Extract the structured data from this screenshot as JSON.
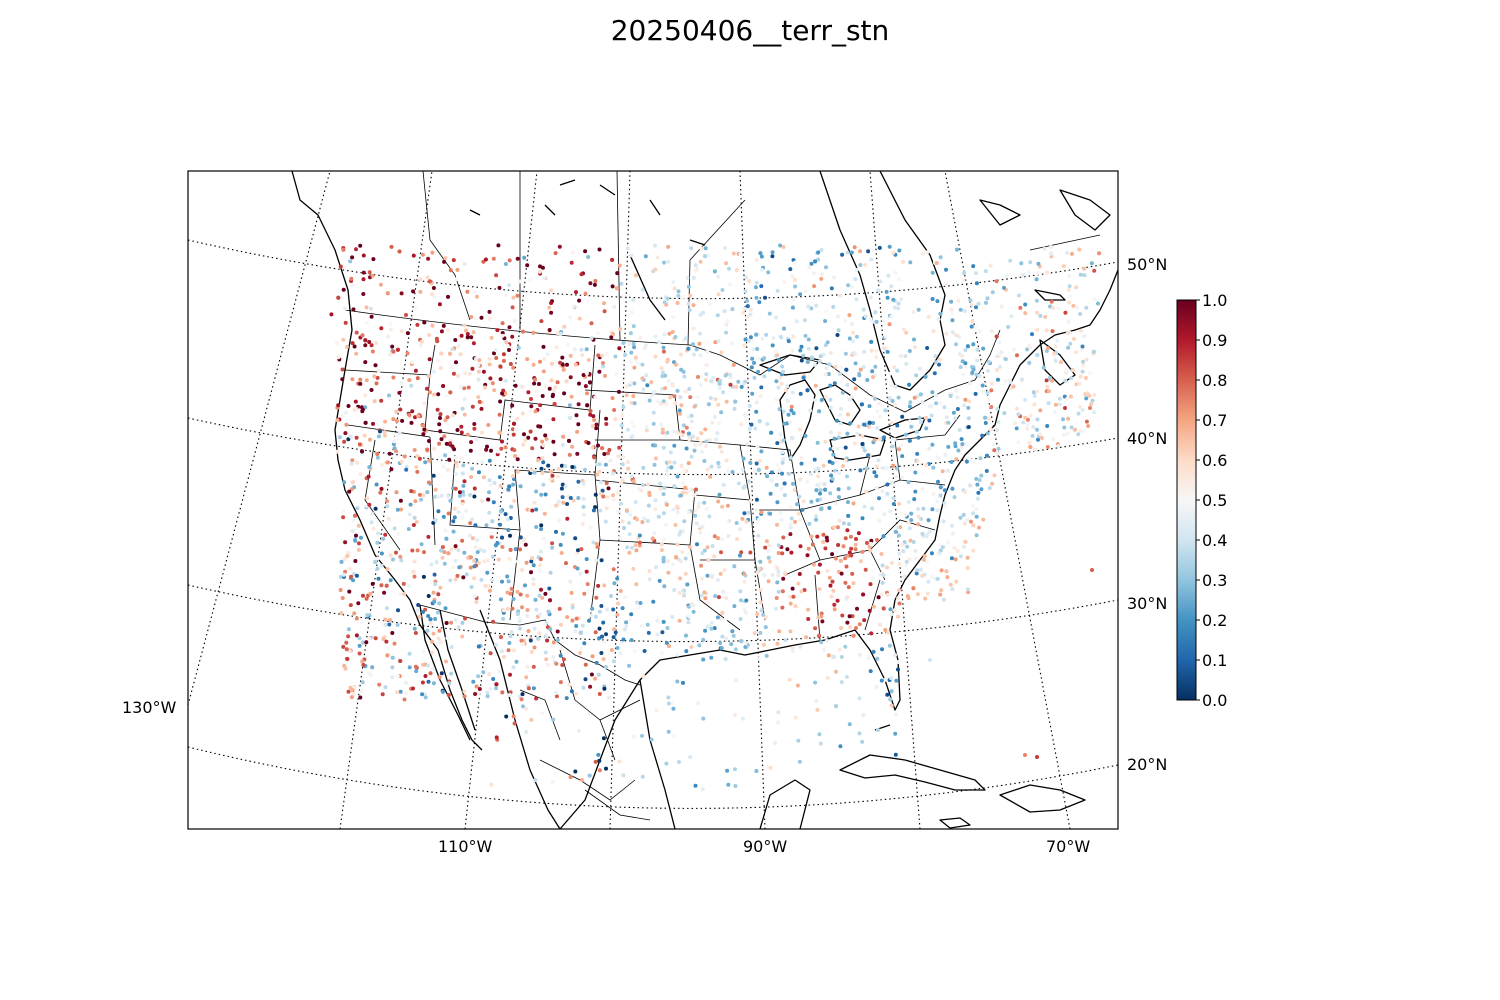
{
  "title": "20250406__terr_stn",
  "map": {
    "projection": "lambert-conformal",
    "lat_labels": [
      "20°N",
      "30°N",
      "40°N",
      "50°N"
    ],
    "lon_labels": [
      "130°W",
      "110°W",
      "90°W",
      "70°W"
    ],
    "station_count_estimate": "thousands",
    "colors": {
      "coast": "#000000",
      "graticule": "#000000"
    }
  },
  "colorbar": {
    "ticks": [
      "0.0",
      "0.1",
      "0.2",
      "0.3",
      "0.4",
      "0.5",
      "0.6",
      "0.7",
      "0.8",
      "0.9",
      "1.0"
    ],
    "range": [
      0.0,
      1.0
    ],
    "colormap": "RdBu_r",
    "stops": [
      "#053061",
      "#2166ac",
      "#4393c3",
      "#92c5de",
      "#d1e5f0",
      "#f7f7f7",
      "#fddbc7",
      "#f4a582",
      "#d6604d",
      "#b2182b",
      "#67001f"
    ]
  }
}
